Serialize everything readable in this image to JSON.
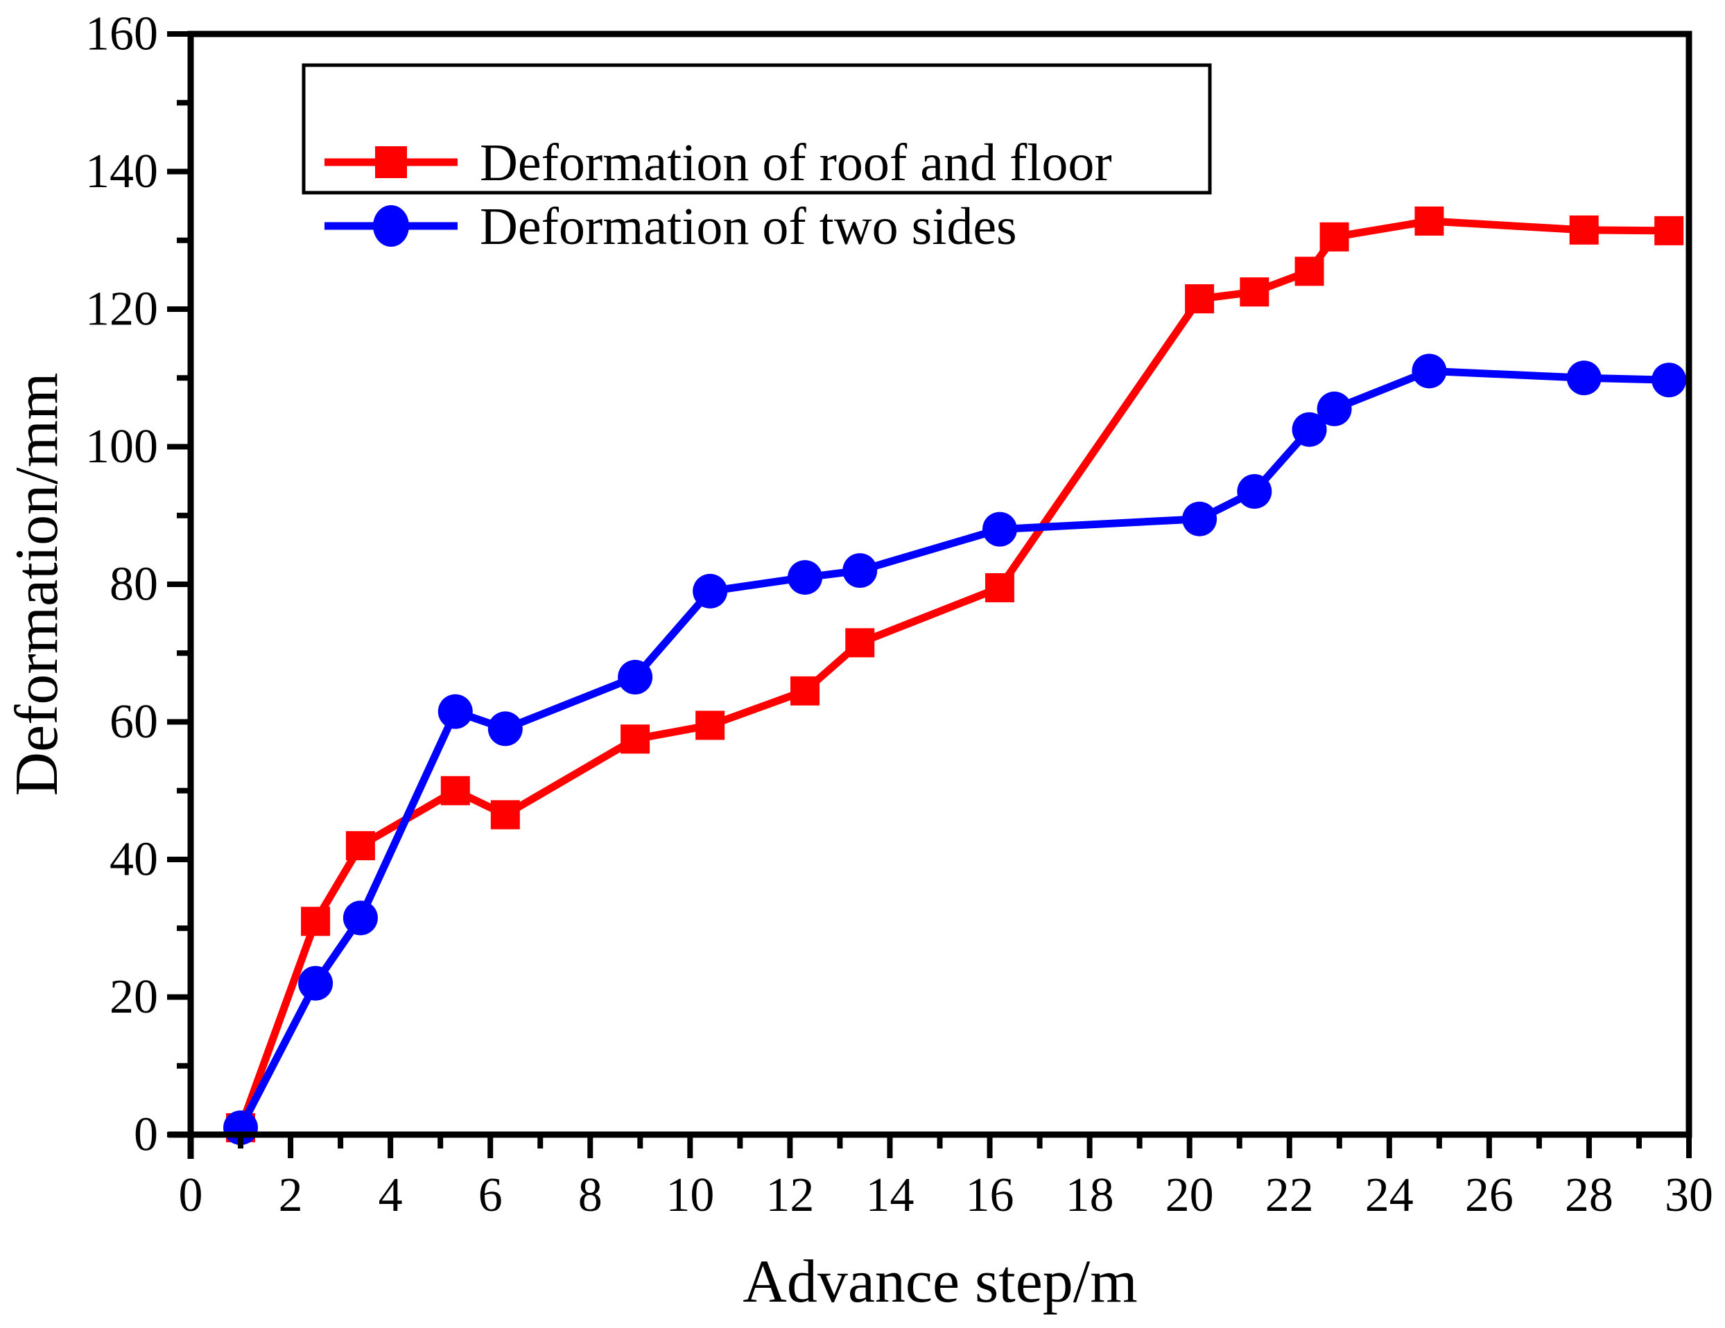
{
  "figure": {
    "background": "#ffffff",
    "frame_color": "#000000"
  },
  "chart_data": {
    "type": "line",
    "title": "",
    "xlabel": "Advance step/m",
    "ylabel": "Deformation/mm",
    "xlim": [
      0,
      30
    ],
    "ylim": [
      0,
      160
    ],
    "grid": false,
    "legend_position": "top-left",
    "x_major_ticks": [
      0,
      2,
      4,
      6,
      8,
      10,
      12,
      14,
      16,
      18,
      20,
      22,
      24,
      26,
      28,
      30
    ],
    "x_minor_ticks": [
      1,
      3,
      5,
      7,
      9,
      11,
      13,
      15,
      17,
      19,
      21,
      23,
      25,
      27,
      29
    ],
    "y_major_ticks": [
      0,
      20,
      40,
      60,
      80,
      100,
      120,
      140,
      160
    ],
    "y_minor_ticks": [
      10,
      30,
      50,
      70,
      90,
      110,
      130,
      150
    ],
    "x": [
      1.0,
      2.5,
      3.4,
      5.3,
      6.3,
      8.9,
      10.4,
      12.3,
      13.4,
      16.2,
      20.2,
      21.3,
      22.4,
      22.9,
      24.8,
      27.9,
      29.6
    ],
    "series": [
      {
        "name": "Deformation of roof and floor",
        "color": "#ff0000",
        "marker": "square",
        "values": [
          1.0,
          31.0,
          42.0,
          50.0,
          46.5,
          57.5,
          59.5,
          64.5,
          71.5,
          79.5,
          121.5,
          122.5,
          125.5,
          130.5,
          132.8,
          131.5,
          131.4
        ]
      },
      {
        "name": "Deformation of two sides",
        "color": "#0000ff",
        "marker": "circle",
        "values": [
          1.0,
          22.0,
          31.5,
          61.5,
          59.0,
          66.5,
          79.0,
          81.0,
          82.0,
          88.0,
          89.5,
          93.5,
          102.5,
          105.5,
          111.0,
          110.0,
          109.7
        ]
      }
    ]
  }
}
